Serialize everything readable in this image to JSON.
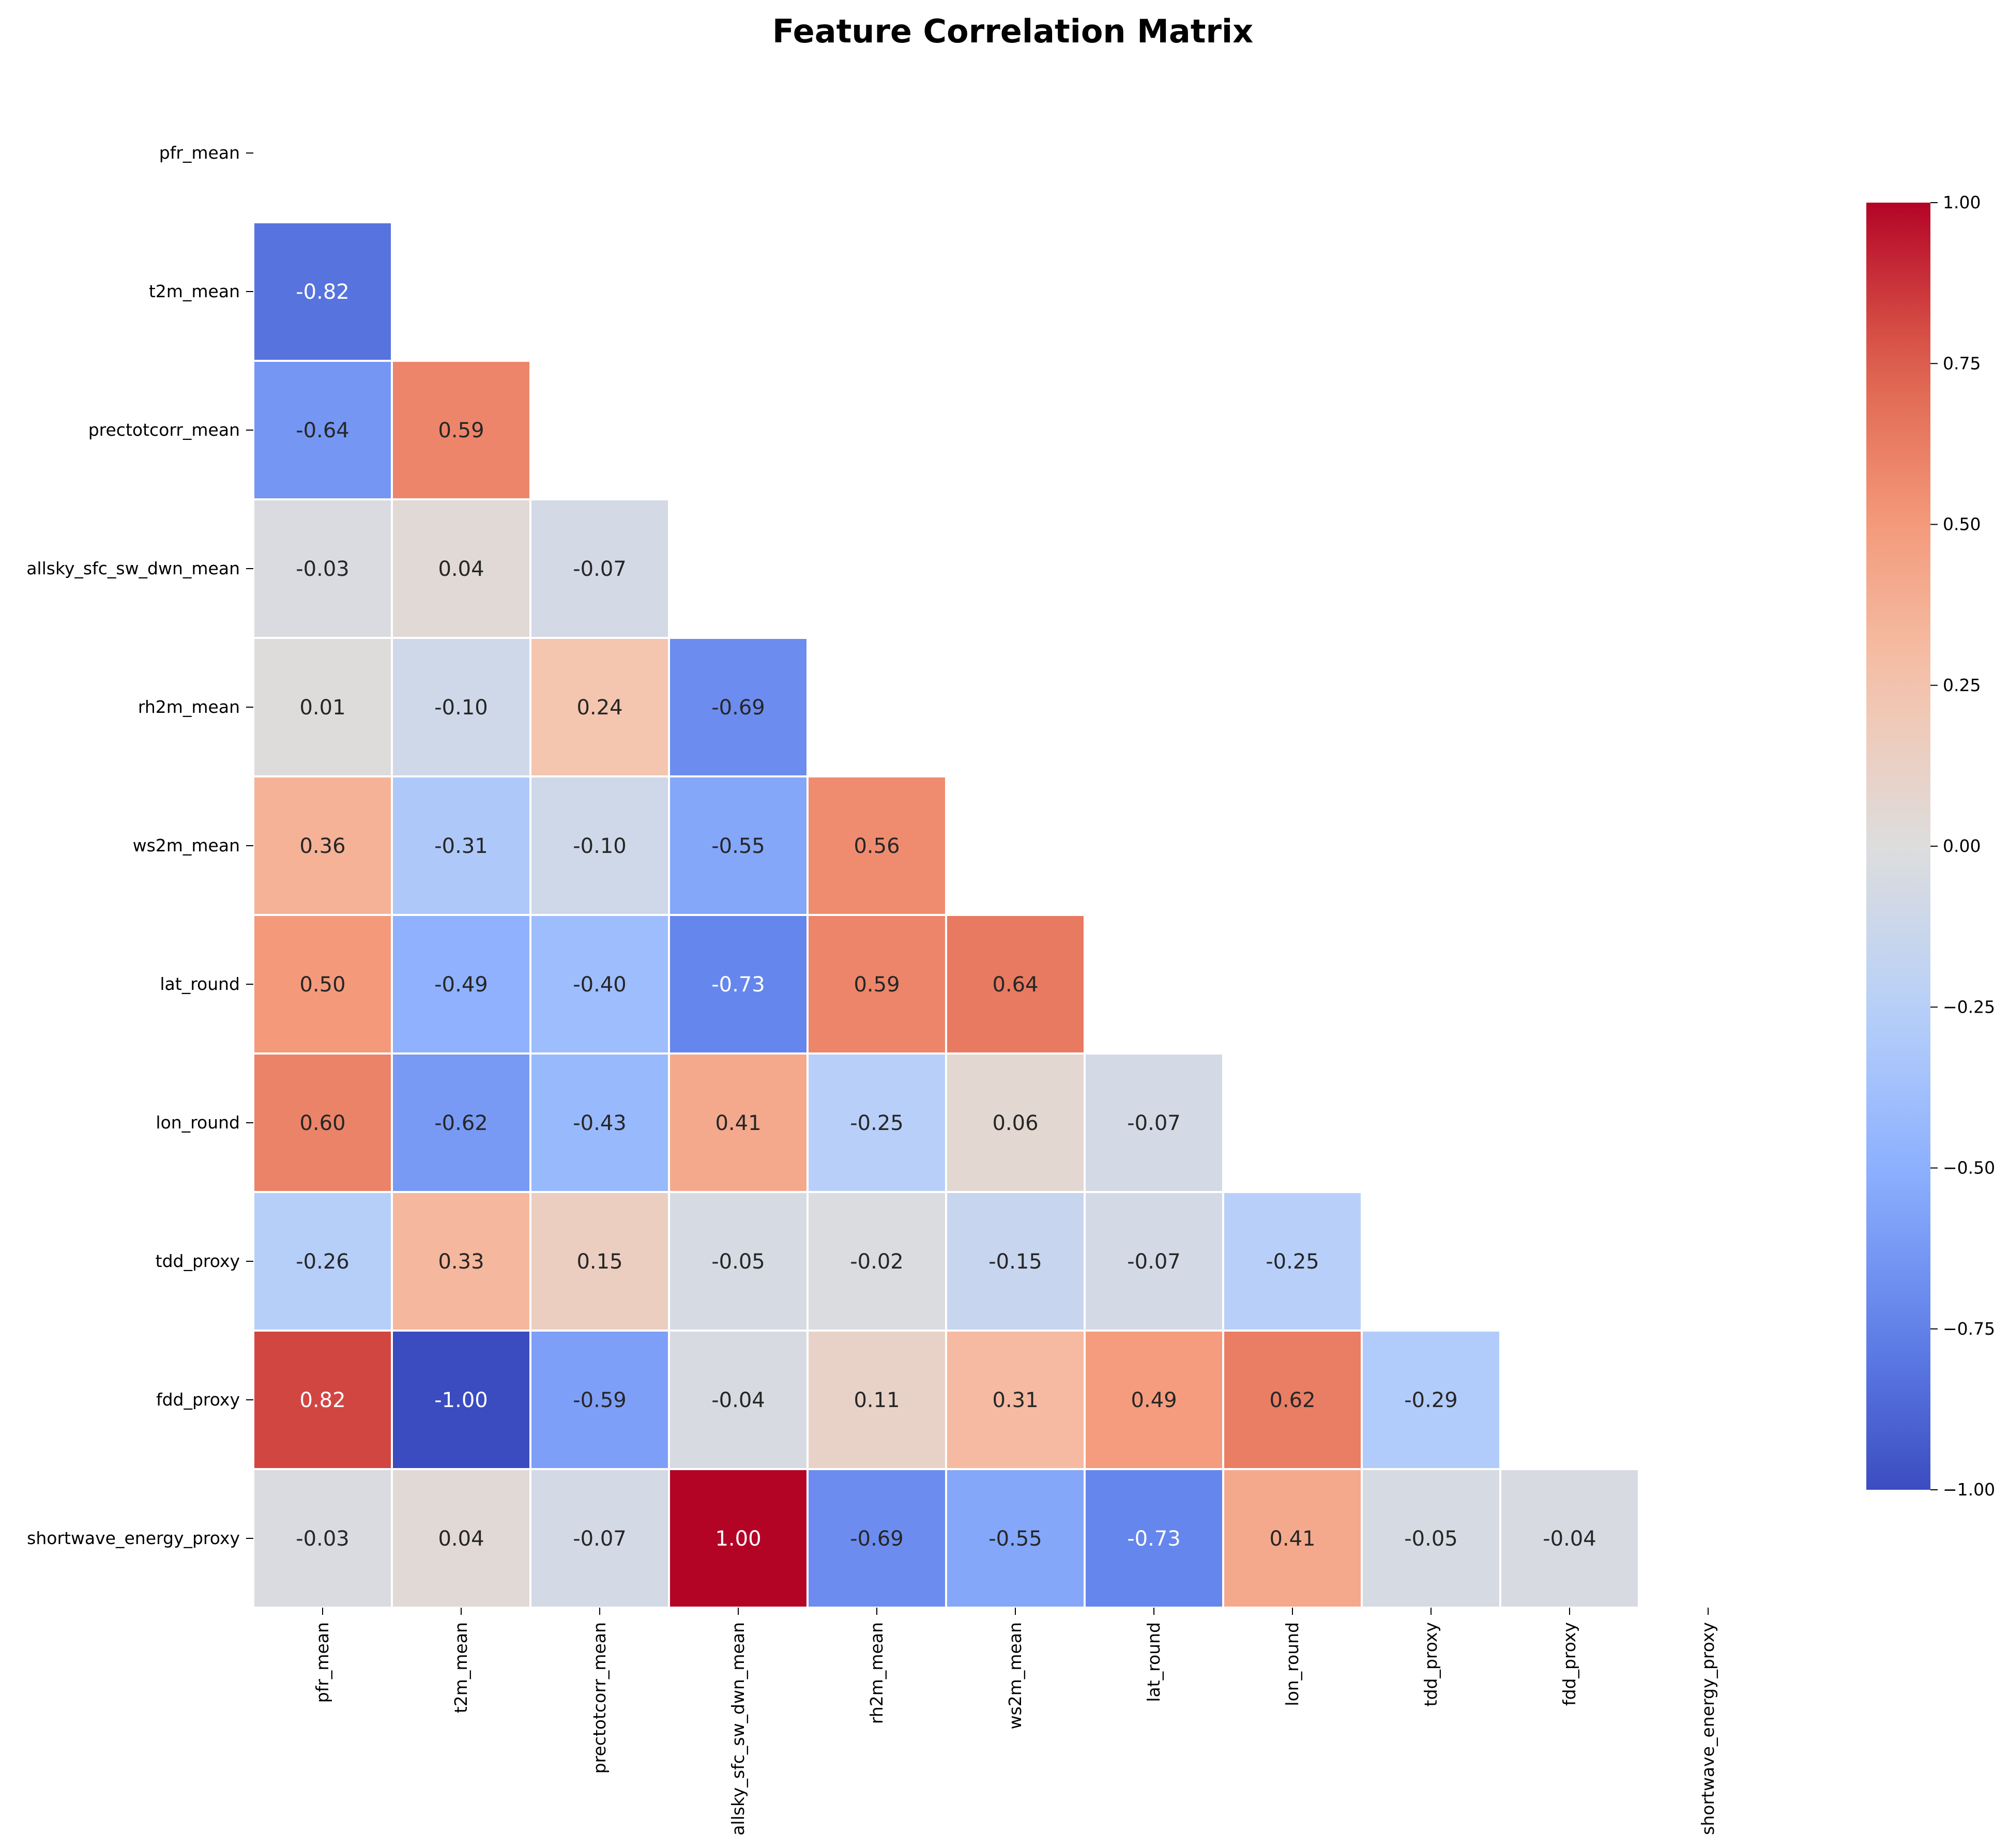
{
  "chart_data": {
    "type": "heatmap",
    "title": "Feature Correlation Matrix",
    "xlabel": "",
    "ylabel": "",
    "labels": [
      "pfr_mean",
      "t2m_mean",
      "prectotcorr_mean",
      "allsky_sfc_sw_dwn_mean",
      "rh2m_mean",
      "ws2m_mean",
      "lat_round",
      "lon_round",
      "tdd_proxy",
      "fdd_proxy",
      "shortwave_energy_proxy"
    ],
    "mask": "upper-triangle-including-diagonal",
    "matrix": [
      [
        null,
        null,
        null,
        null,
        null,
        null,
        null,
        null,
        null,
        null,
        null
      ],
      [
        -0.82,
        null,
        null,
        null,
        null,
        null,
        null,
        null,
        null,
        null,
        null
      ],
      [
        -0.64,
        0.59,
        null,
        null,
        null,
        null,
        null,
        null,
        null,
        null,
        null
      ],
      [
        -0.03,
        0.04,
        -0.07,
        null,
        null,
        null,
        null,
        null,
        null,
        null,
        null
      ],
      [
        0.01,
        -0.1,
        0.24,
        -0.69,
        null,
        null,
        null,
        null,
        null,
        null,
        null
      ],
      [
        0.36,
        -0.31,
        -0.1,
        -0.55,
        0.56,
        null,
        null,
        null,
        null,
        null,
        null
      ],
      [
        0.5,
        -0.49,
        -0.4,
        -0.73,
        0.59,
        0.64,
        null,
        null,
        null,
        null,
        null
      ],
      [
        0.6,
        -0.62,
        -0.43,
        0.41,
        -0.25,
        0.06,
        -0.07,
        null,
        null,
        null,
        null
      ],
      [
        -0.26,
        0.33,
        0.15,
        -0.05,
        -0.02,
        -0.15,
        -0.07,
        -0.25,
        null,
        null,
        null
      ],
      [
        0.82,
        -1.0,
        -0.59,
        -0.04,
        0.11,
        0.31,
        0.49,
        0.62,
        -0.29,
        null,
        null
      ],
      [
        -0.03,
        0.04,
        -0.07,
        1.0,
        -0.69,
        -0.55,
        -0.73,
        0.41,
        -0.05,
        -0.04,
        null
      ]
    ],
    "colormap": "coolwarm",
    "vmin": -1.0,
    "vmax": 1.0,
    "colorbar_ticks": [
      "1.00",
      "0.75",
      "0.50",
      "0.25",
      "0.00",
      "−0.25",
      "−0.50",
      "−0.75",
      "−1.00"
    ],
    "colorbar_tick_values": [
      1.0,
      0.75,
      0.5,
      0.25,
      0.0,
      -0.25,
      -0.5,
      -0.75,
      -1.0
    ],
    "legend": "colorbar-right",
    "grid": false
  }
}
